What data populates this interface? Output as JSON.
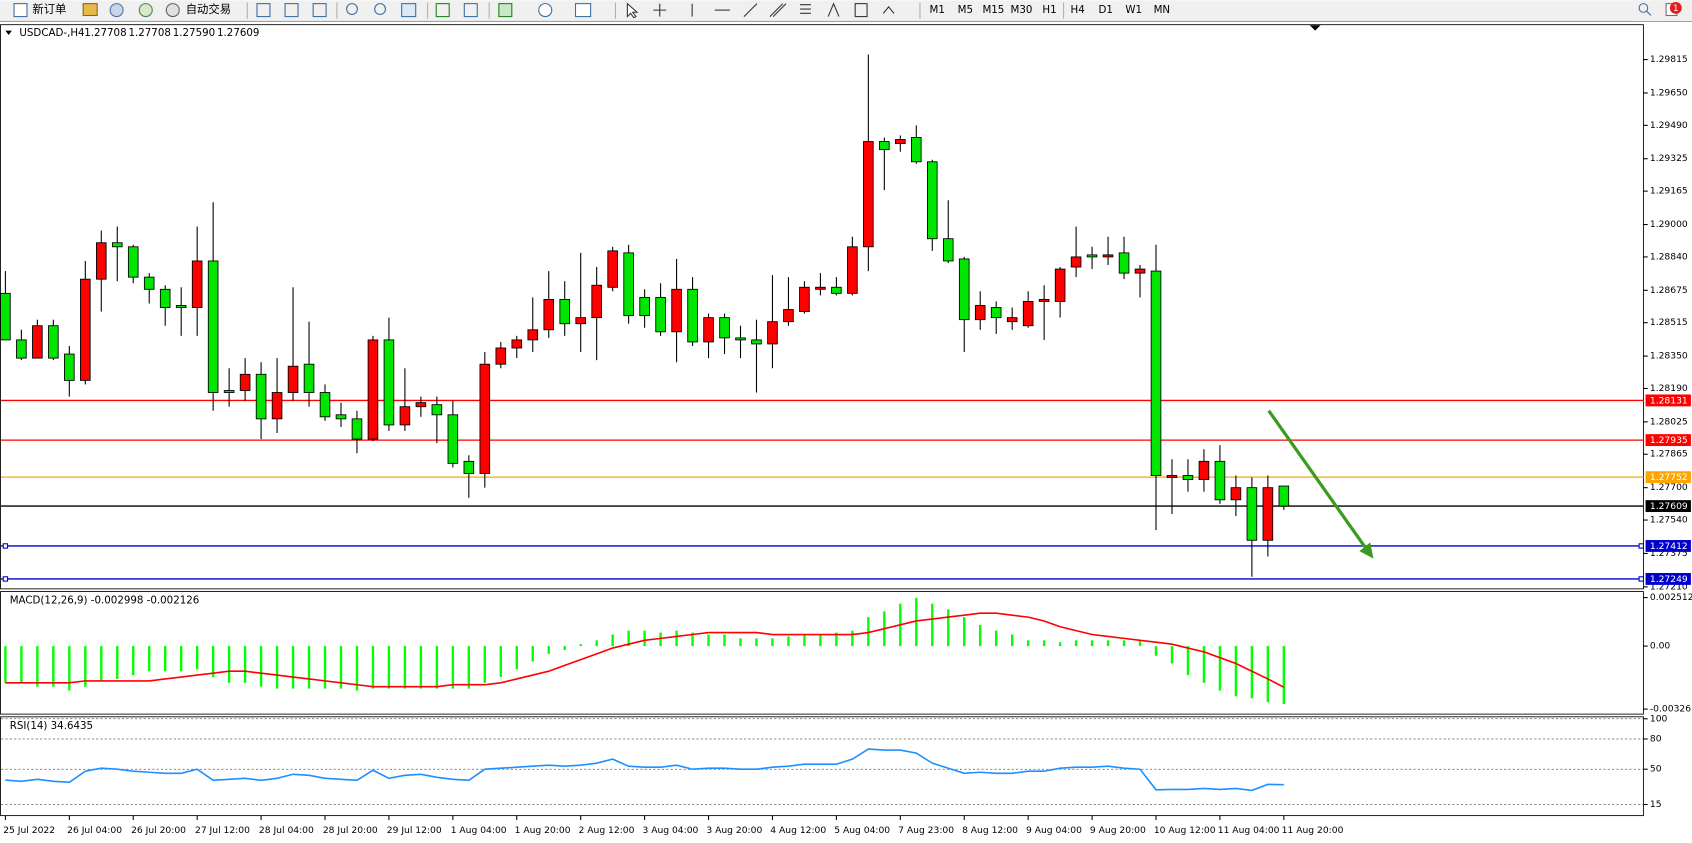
{
  "toolbar": {
    "buttons": [
      "新订单",
      "自动交易"
    ],
    "timeframes": [
      "M1",
      "M5",
      "M15",
      "M30",
      "H1",
      "H4",
      "D1",
      "W1",
      "MN"
    ],
    "notification_count": 1
  },
  "chart_data": [
    {
      "type": "candlestick",
      "title": "USDCAD-,H4",
      "header_values": [
        "1.27708",
        "1.27708",
        "1.27590",
        "1.27609"
      ],
      "categories": [
        "25 Jul 2022",
        null,
        null,
        null,
        "26 Jul 04:00",
        null,
        null,
        null,
        "26 Jul 20:00",
        null,
        null,
        null,
        "27 Jul 12:00",
        null,
        null,
        null,
        "28 Jul 04:00",
        null,
        null,
        null,
        "28 Jul 20:00",
        null,
        null,
        null,
        "29 Jul 12:00",
        null,
        null,
        null,
        "1 Aug 04:00",
        null,
        null,
        null,
        "1 Aug 20:00",
        null,
        null,
        null,
        "2 Aug 12:00",
        null,
        null,
        null,
        "3 Aug 04:00",
        null,
        null,
        null,
        "3 Aug 20:00",
        null,
        null,
        null,
        "4 Aug 12:00",
        null,
        null,
        null,
        "5 Aug 04:00",
        null,
        null,
        null,
        "7 Aug 23:00",
        null,
        null,
        null,
        "8 Aug 12:00",
        null,
        null,
        null,
        "9 Aug 04:00",
        null,
        null,
        null,
        "9 Aug 20:00",
        null,
        null,
        null,
        "10 Aug 12:00",
        null,
        null,
        null,
        "11 Aug 04:00",
        null,
        null,
        null,
        "11 Aug 20:00"
      ],
      "open": [
        1.2866,
        1.2843,
        1.2834,
        1.285,
        1.2836,
        1.2823,
        1.2873,
        1.2891,
        1.2889,
        1.2874,
        1.2868,
        1.286,
        1.2859,
        1.2882,
        1.2818,
        1.2818,
        1.2826,
        1.2804,
        1.2817,
        1.2831,
        1.2817,
        1.2806,
        1.2804,
        1.2794,
        1.2843,
        1.2801,
        1.281,
        1.2811,
        1.2806,
        1.2783,
        1.2777,
        1.2831,
        1.2839,
        1.2843,
        1.2848,
        1.2863,
        1.2851,
        1.2854,
        1.2869,
        1.2886,
        1.2864,
        1.2864,
        1.2847,
        1.2868,
        1.2842,
        1.2854,
        1.2844,
        1.2843,
        1.2841,
        1.2852,
        1.2857,
        1.2868,
        1.2869,
        1.2866,
        1.2889,
        1.2941,
        1.294,
        1.2943,
        1.2931,
        1.2893,
        1.2883,
        1.2853,
        1.2859,
        1.2852,
        1.285,
        1.2862,
        1.2862,
        1.2879,
        1.2885,
        1.2884,
        1.2886,
        1.2876,
        1.2877,
        1.2775,
        1.2776,
        1.2774,
        1.2783,
        1.2764,
        1.277,
        1.2744,
        1.27708
      ],
      "high": [
        1.2877,
        1.2848,
        1.2853,
        1.2853,
        1.284,
        1.2882,
        1.2897,
        1.2899,
        1.289,
        1.2876,
        1.287,
        1.2869,
        1.2899,
        1.2911,
        1.2829,
        1.2834,
        1.2832,
        1.2834,
        1.2869,
        1.2852,
        1.2821,
        1.2812,
        1.2808,
        1.2845,
        1.2854,
        1.2829,
        1.2815,
        1.2815,
        1.2813,
        1.2786,
        1.2837,
        1.2842,
        1.2845,
        1.2864,
        1.2877,
        1.2872,
        1.2886,
        1.2879,
        1.2889,
        1.289,
        1.2868,
        1.2871,
        1.2883,
        1.2874,
        1.2856,
        1.2856,
        1.285,
        1.2853,
        1.2875,
        1.2874,
        1.2872,
        1.2876,
        1.2874,
        1.2894,
        1.2984,
        1.2943,
        1.2944,
        1.2949,
        1.2932,
        1.2912,
        1.2884,
        1.2867,
        1.2862,
        1.2859,
        1.2867,
        1.287,
        1.2879,
        1.2899,
        1.2889,
        1.2894,
        1.2894,
        1.288,
        1.289,
        1.2784,
        1.2784,
        1.2789,
        1.2791,
        1.2776,
        1.2775,
        1.2776,
        1.27708
      ],
      "low": [
        1.2843,
        1.2833,
        1.2834,
        1.2833,
        1.2815,
        1.2821,
        1.2857,
        1.2872,
        1.2871,
        1.2861,
        1.285,
        1.2845,
        1.2845,
        1.2808,
        1.281,
        1.2813,
        1.2794,
        1.2797,
        1.2813,
        1.281,
        1.2803,
        1.28,
        1.2787,
        1.2793,
        1.2798,
        1.2798,
        1.2805,
        1.2792,
        1.278,
        1.2765,
        1.277,
        1.2829,
        1.2834,
        1.2837,
        1.2844,
        1.2845,
        1.2837,
        1.2833,
        1.2867,
        1.2851,
        1.2849,
        1.2845,
        1.2832,
        1.284,
        1.2834,
        1.2836,
        1.2834,
        1.2817,
        1.2829,
        1.285,
        1.2856,
        1.2865,
        1.2865,
        1.2865,
        1.2877,
        1.2917,
        1.2936,
        1.293,
        1.2887,
        1.2881,
        1.2837,
        1.2848,
        1.2846,
        1.2848,
        1.2849,
        1.2843,
        1.2854,
        1.2874,
        1.2878,
        1.288,
        1.2873,
        1.2864,
        1.2749,
        1.2757,
        1.2768,
        1.2768,
        1.2762,
        1.2756,
        1.2726,
        1.2736,
        1.2759
      ],
      "close": [
        1.2843,
        1.2834,
        1.285,
        1.2834,
        1.2823,
        1.2873,
        1.2891,
        1.2889,
        1.2874,
        1.2868,
        1.2859,
        1.2859,
        1.2882,
        1.2817,
        1.2817,
        1.2826,
        1.2804,
        1.2817,
        1.283,
        1.2817,
        1.2805,
        1.2804,
        1.2794,
        1.2843,
        1.2801,
        1.281,
        1.2812,
        1.2806,
        1.2782,
        1.2777,
        1.2831,
        1.2839,
        1.2843,
        1.2848,
        1.2863,
        1.2851,
        1.2854,
        1.287,
        1.2887,
        1.2855,
        1.2855,
        1.2847,
        1.2868,
        1.2842,
        1.2854,
        1.2844,
        1.2843,
        1.2841,
        1.2852,
        1.2858,
        1.2869,
        1.2869,
        1.2866,
        1.2889,
        1.2941,
        1.2937,
        1.2942,
        1.2931,
        1.2893,
        1.2882,
        1.2853,
        1.286,
        1.2854,
        1.2854,
        1.2862,
        1.2863,
        1.2878,
        1.2884,
        1.2884,
        1.2885,
        1.2876,
        1.2878,
        1.2776,
        1.2776,
        1.2774,
        1.2783,
        1.2764,
        1.277,
        1.2744,
        1.277,
        1.27609
      ],
      "up_color": "#ff0000",
      "down_color": "#00e600",
      "ylim": [
        1.272,
        1.2999
      ],
      "yticks": [
        1.29815,
        {
          "value": 1.2965,
          "label": "1.29650"
        },
        {
          "value": 1.2949,
          "label": "1.29490"
        },
        1.29325,
        1.29165,
        {
          "value": 1.29,
          "label": "1.29000"
        },
        {
          "value": 1.2884,
          "label": "1.28840"
        },
        1.28675,
        1.28515,
        {
          "value": 1.2835,
          "label": "1.28350"
        },
        {
          "value": 1.2819,
          "label": "1.28190"
        },
        1.28025,
        1.27865,
        {
          "value": 1.277,
          "label": "1.27700"
        },
        {
          "value": 1.2754,
          "label": "1.27540"
        },
        1.27375,
        {
          "value": 1.2721,
          "label": "1.27210"
        }
      ],
      "levels": [
        {
          "value": 1.28131,
          "color": "#ff0000"
        },
        {
          "value": 1.27935,
          "color": "#ff0000"
        },
        {
          "value": 1.27752,
          "color": "#ffa500"
        },
        {
          "value": 1.27609,
          "color": "#000000"
        },
        {
          "value": 1.27412,
          "color": "#0000cc"
        },
        {
          "value": 1.27249,
          "color": "#0000cc"
        }
      ]
    },
    {
      "type": "macd",
      "title": "MACD(12,26,9) -0.002998 -0.002126",
      "histogram": {
        "color": "#00ff00",
        "values": [
          -0.0019,
          -0.0019,
          -0.0021,
          -0.0021,
          -0.0023,
          -0.0021,
          -0.0018,
          -0.0017,
          -0.0015,
          -0.0013,
          -0.0013,
          -0.0013,
          -0.0012,
          -0.0016,
          -0.0019,
          -0.0019,
          -0.0021,
          -0.0022,
          -0.0022,
          -0.0022,
          -0.0022,
          -0.0022,
          -0.0023,
          -0.0022,
          -0.0022,
          -0.0022,
          -0.0022,
          -0.0022,
          -0.0022,
          -0.0022,
          -0.0019,
          -0.0016,
          -0.0012,
          -0.0008,
          -0.0004,
          -0.0002,
          0.0001,
          0.0003,
          0.0006,
          0.0008,
          0.0008,
          0.0007,
          0.0008,
          0.0007,
          0.0006,
          0.0006,
          0.0004,
          0.0004,
          0.0004,
          0.0005,
          0.0006,
          0.0006,
          0.0007,
          0.0008,
          0.0015,
          0.0018,
          0.0022,
          0.0025,
          0.0022,
          0.0019,
          0.0015,
          0.0011,
          0.0008,
          0.0006,
          0.0003,
          0.0003,
          0.0002,
          0.0003,
          0.0003,
          0.0003,
          0.0003,
          0.0003,
          -0.0005,
          -0.0009,
          -0.0015,
          -0.0019,
          -0.0023,
          -0.0026,
          -0.0027,
          -0.0029,
          -0.002998
        ]
      },
      "signal": {
        "color": "#ff0000",
        "values": [
          -0.0019,
          -0.0019,
          -0.0019,
          -0.0019,
          -0.0019,
          -0.0018,
          -0.0018,
          -0.0018,
          -0.0018,
          -0.0018,
          -0.0017,
          -0.0016,
          -0.0015,
          -0.0014,
          -0.0013,
          -0.0013,
          -0.0014,
          -0.0015,
          -0.0016,
          -0.0017,
          -0.0018,
          -0.0019,
          -0.002,
          -0.0021,
          -0.0021,
          -0.0021,
          -0.0021,
          -0.0021,
          -0.002,
          -0.002,
          -0.002,
          -0.0019,
          -0.0017,
          -0.0015,
          -0.0013,
          -0.001,
          -0.0007,
          -0.0004,
          -0.0001,
          0.0001,
          0.0003,
          0.0004,
          0.0005,
          0.0006,
          0.0007,
          0.0007,
          0.0007,
          0.0007,
          0.0006,
          0.0006,
          0.0006,
          0.0006,
          0.0006,
          0.0006,
          0.0007,
          0.0009,
          0.0011,
          0.0013,
          0.0014,
          0.0015,
          0.0016,
          0.0017,
          0.0017,
          0.0016,
          0.0015,
          0.0013,
          0.001,
          0.0008,
          0.0006,
          0.0005,
          0.0004,
          0.0003,
          0.0002,
          0.0001,
          -0.0001,
          -0.0003,
          -0.0006,
          -0.0009,
          -0.0013,
          -0.0017,
          -0.002126
        ]
      },
      "ylim": [
        -0.00352,
        0.00285
      ],
      "yticks": [
        0.002512,
        {
          "value": 0,
          "label": "0.00"
        },
        -0.00326
      ]
    },
    {
      "type": "line",
      "title": "RSI(14) 34.6435",
      "color": "#1e90ff",
      "values": [
        39.3,
        38,
        40,
        38,
        37,
        48,
        51,
        50,
        48,
        47,
        46,
        46,
        50,
        39,
        40,
        41,
        39,
        41,
        45,
        44,
        41,
        40,
        39,
        49,
        41,
        44,
        45,
        42,
        40,
        39,
        50,
        51,
        52,
        53,
        54,
        53,
        54,
        56,
        60,
        53,
        52,
        52,
        54,
        50,
        51,
        51,
        50,
        50,
        52,
        53,
        55,
        55,
        55,
        60,
        70,
        69,
        69,
        66,
        56,
        51,
        46,
        47,
        46,
        46,
        48,
        48,
        51,
        52,
        52,
        53,
        51,
        50,
        29.6,
        30,
        30,
        31,
        30,
        31,
        29,
        35,
        34.6435
      ],
      "ylim": [
        4,
        102.5
      ],
      "yticks": [
        100,
        80,
        50,
        15
      ],
      "grid": true
    }
  ]
}
